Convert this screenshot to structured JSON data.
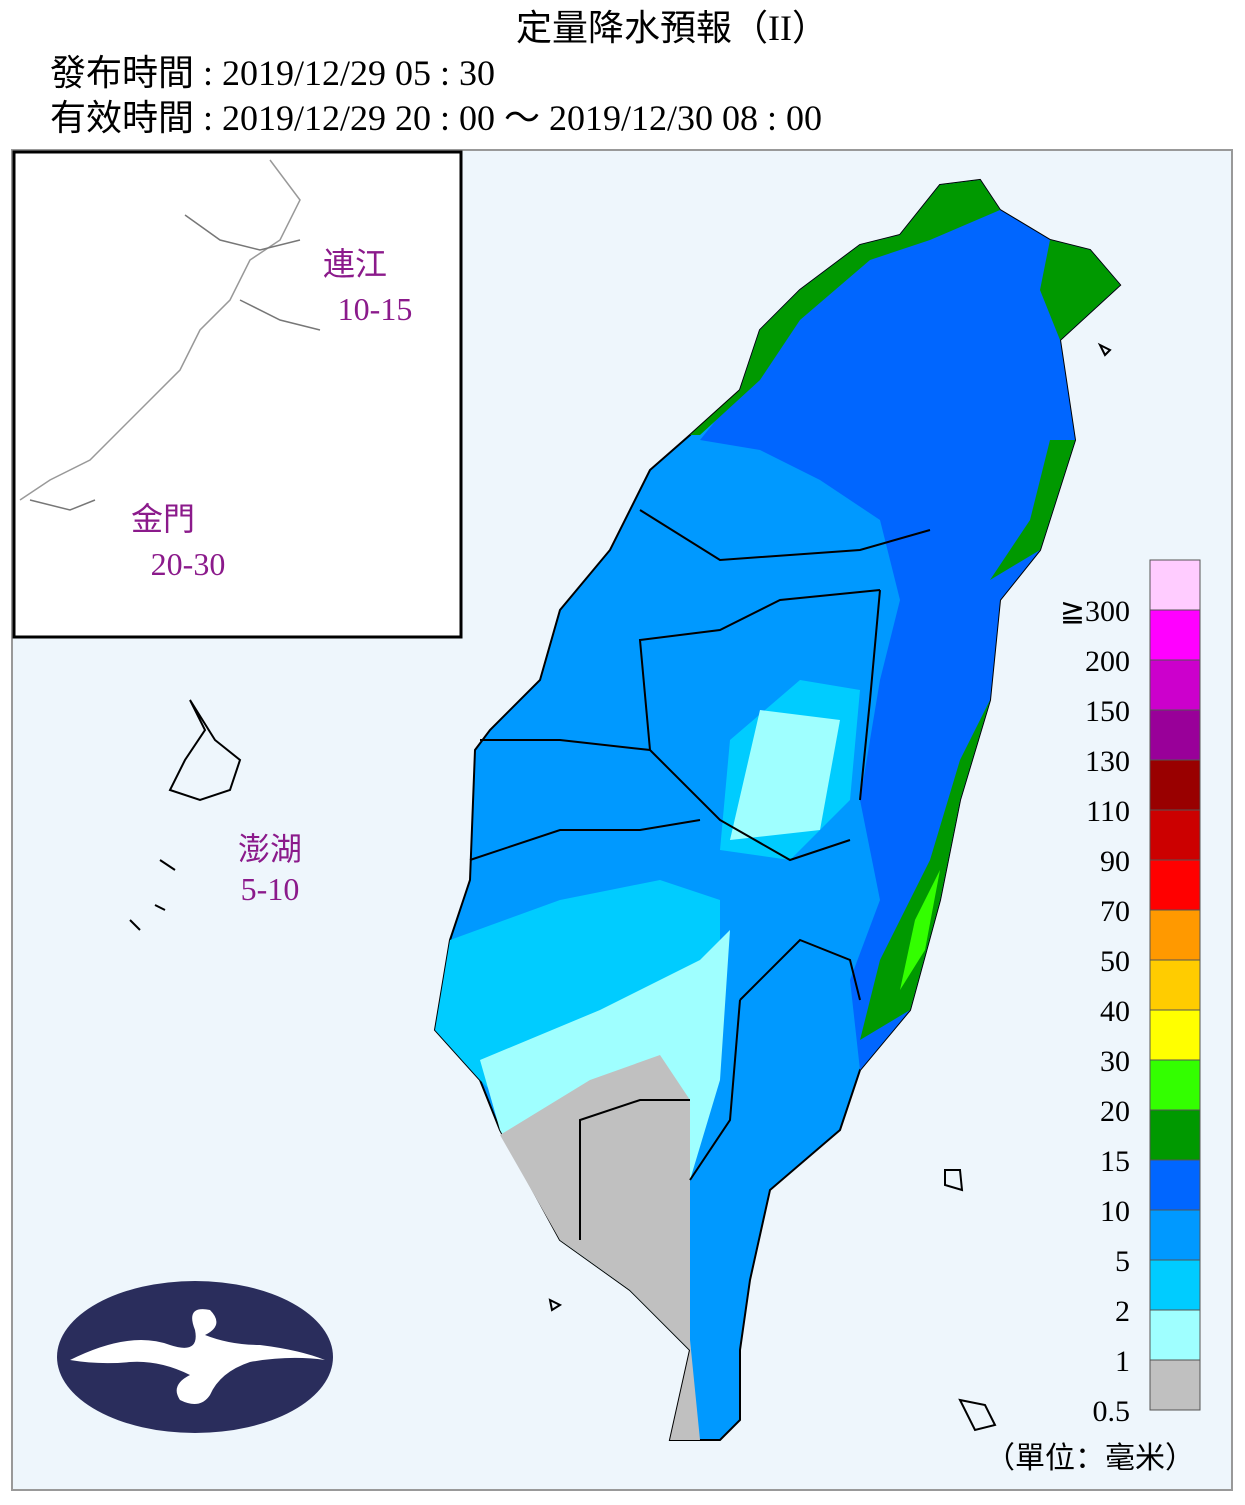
{
  "header": {
    "title": "定量降水預報（II）",
    "issued": "發布時間 : 2019/12/29 05 : 30",
    "valid": "有效時間 : 2019/12/29 20 : 00 ～ 2019/12/30 08 : 00"
  },
  "islands": [
    {
      "name": "連江",
      "range": "10-15"
    },
    {
      "name": "金門",
      "range": "20-30"
    },
    {
      "name": "澎湖",
      "range": "5-10"
    }
  ],
  "legend": {
    "colors": [
      "#c0c0c0",
      "#9fffff",
      "#00ccff",
      "#0099ff",
      "#0066ff",
      "#009900",
      "#33ff00",
      "#ffff00",
      "#ffcc00",
      "#ff9900",
      "#ff0000",
      "#cc0000",
      "#990000",
      "#990099",
      "#cc00cc",
      "#ff00ff",
      "#ffccff"
    ],
    "labels": [
      "0.5",
      "1",
      "2",
      "5",
      "10",
      "15",
      "20",
      "30",
      "40",
      "50",
      "70",
      "90",
      "110",
      "130",
      "150",
      "200",
      "≧300"
    ],
    "unit": "（單位：毫米）"
  }
}
